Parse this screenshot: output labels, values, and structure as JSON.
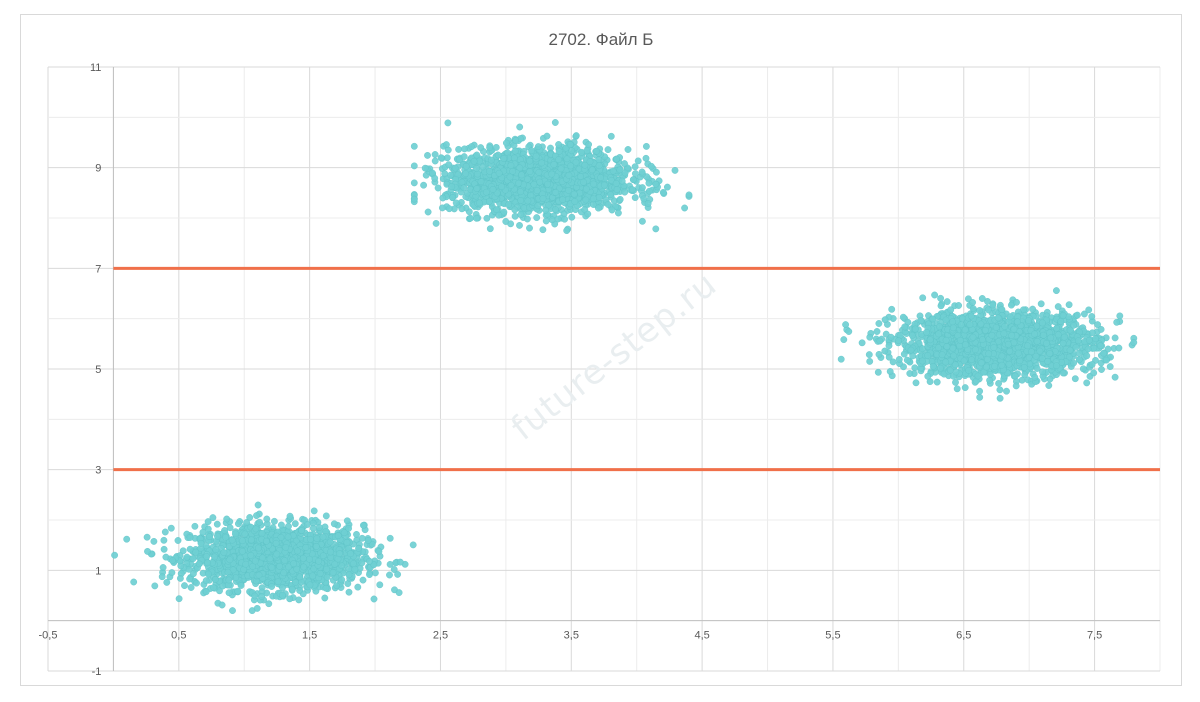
{
  "chart_data": {
    "type": "scatter",
    "title": "2702. Файл Б",
    "xlabel": "",
    "ylabel": "",
    "xlim": [
      -0.5,
      8
    ],
    "ylim": [
      -1,
      11
    ],
    "x_ticks": [
      "-0,5",
      "0,5",
      "1,5",
      "2,5",
      "3,5",
      "4,5",
      "5,5",
      "6,5",
      "7,5"
    ],
    "y_ticks": [
      "-1",
      "1",
      "3",
      "5",
      "7",
      "9",
      "11"
    ],
    "grid": true,
    "legend": "none",
    "point_color": "#6fcfd2",
    "line_color": "#f0704a",
    "watermark": "future-step.ru",
    "clusters": [
      {
        "center": [
          1.25,
          1.25
        ],
        "spread": [
          0.33,
          0.32
        ],
        "count": 1800,
        "x_range": [
          0.0,
          2.3
        ],
        "y_range": [
          0.2,
          2.7
        ]
      },
      {
        "center": [
          3.25,
          8.75
        ],
        "spread": [
          0.35,
          0.32
        ],
        "count": 1800,
        "x_range": [
          2.3,
          4.4
        ],
        "y_range": [
          7.7,
          10.0
        ]
      },
      {
        "center": [
          6.75,
          5.5
        ],
        "spread": [
          0.38,
          0.32
        ],
        "count": 1800,
        "x_range": [
          5.4,
          7.8
        ],
        "y_range": [
          4.2,
          6.6
        ]
      }
    ],
    "reference_lines": [
      {
        "orientation": "horizontal",
        "y": 3
      },
      {
        "orientation": "horizontal",
        "y": 7
      }
    ]
  }
}
